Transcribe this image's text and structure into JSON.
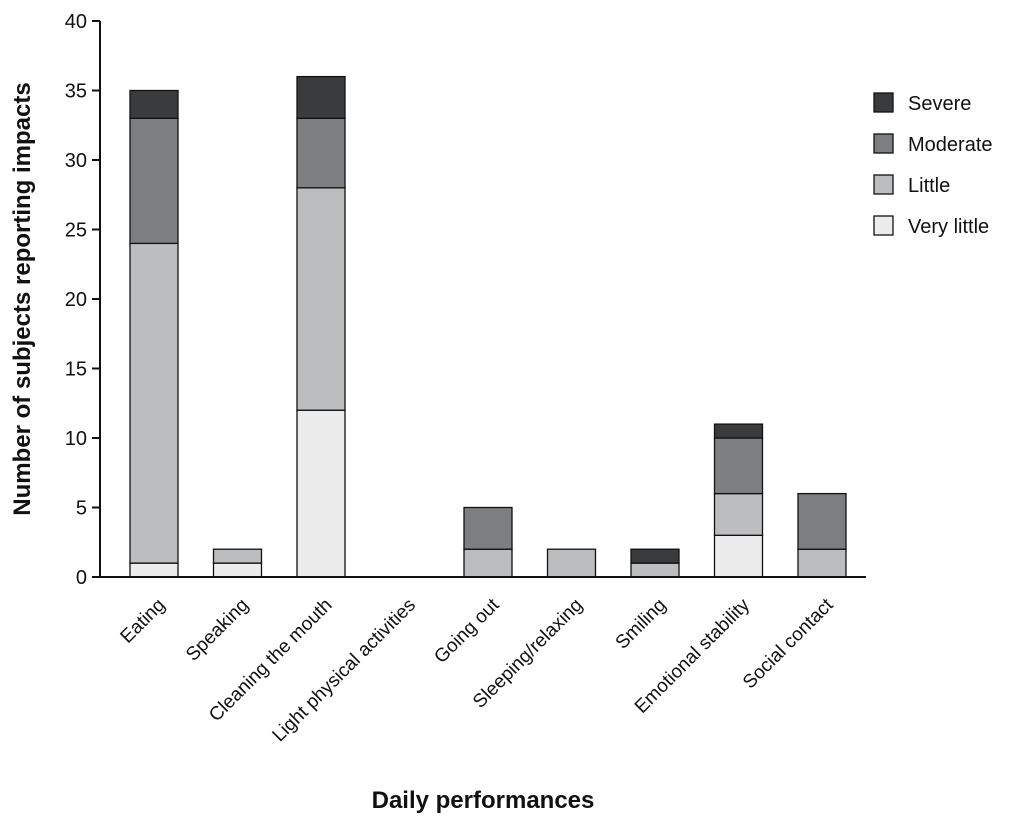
{
  "chart_data": {
    "type": "bar",
    "stacked": true,
    "title": "",
    "xlabel": "Daily performances",
    "ylabel": "Number of subjects reporting impacts",
    "ylim": [
      0,
      40
    ],
    "yticks": [
      0,
      5,
      10,
      15,
      20,
      25,
      30,
      35,
      40
    ],
    "grid": false,
    "legend_position": "right",
    "categories": [
      "Eating",
      "Speaking",
      "Cleaning the mouth",
      "Light physical activities",
      "Going out",
      "Sleeping/relaxing",
      "Smiling",
      "Emotional stability",
      "Social contact"
    ],
    "series": [
      {
        "name": "Very little",
        "color": "#ececec",
        "values": [
          1,
          1,
          12,
          0,
          0,
          0,
          0,
          3,
          0
        ]
      },
      {
        "name": "Little",
        "color": "#bcbdbf",
        "values": [
          23,
          1,
          16,
          0,
          2,
          2,
          1,
          3,
          2
        ]
      },
      {
        "name": "Moderate",
        "color": "#7d7e80",
        "values": [
          9,
          0,
          5,
          0,
          3,
          0,
          0,
          4,
          4
        ]
      },
      {
        "name": "Severe",
        "color": "#3a3b3d",
        "values": [
          2,
          0,
          3,
          0,
          0,
          0,
          1,
          1,
          0
        ]
      }
    ],
    "legend_order": [
      "Severe",
      "Moderate",
      "Little",
      "Very little"
    ]
  }
}
